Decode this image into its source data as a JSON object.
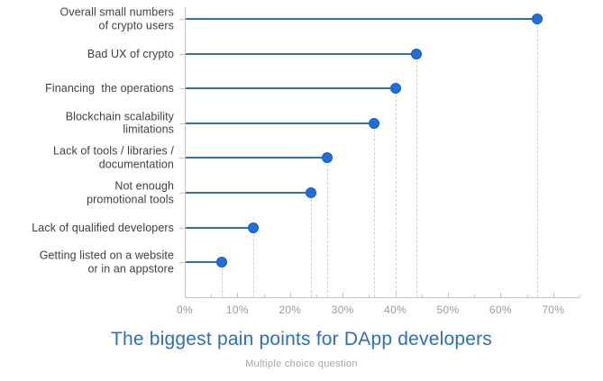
{
  "colors": {
    "dot_fill": "#1e6fdd",
    "dot_border": "#1a5cbd",
    "stem": "#38709f",
    "drop_line": "#cfcfcf",
    "axis": "#c4c4c4",
    "tick_label": "#9b9b9b",
    "category_label": "#3f3f3f",
    "title": "#2e6fb7",
    "subtitle": "#a5a5a5",
    "background": "#ffffff"
  },
  "chart_data": {
    "type": "bar",
    "variant": "horizontal-lollipop",
    "title": "The biggest pain points for DApp developers",
    "subtitle": "Multiple choice question",
    "categories": [
      "Overall small numbers\nof crypto users",
      "Bad UX of crypto",
      "Financing  the operations",
      "Blockchain scalability\nlimitations",
      "Lack of tools / libraries /\ndocumentation",
      "Not enough\npromotional tools",
      "Lack of qualified developers",
      "Getting listed on a website\nor in an appstore"
    ],
    "values": [
      67,
      44,
      40,
      36,
      27,
      24,
      13,
      7
    ],
    "unit": "%",
    "xlabel": "",
    "ylabel": "",
    "xlim": [
      0,
      75
    ],
    "x_ticks": [
      0,
      10,
      20,
      30,
      40,
      50,
      60,
      70
    ],
    "x_tick_labels": [
      "0%",
      "10%",
      "20%",
      "30%",
      "40%",
      "50%",
      "60%",
      "70%"
    ],
    "minor_tick_step": 5,
    "grid": "dashed vertical drop line from each dot to the x-axis",
    "legend": "none"
  }
}
